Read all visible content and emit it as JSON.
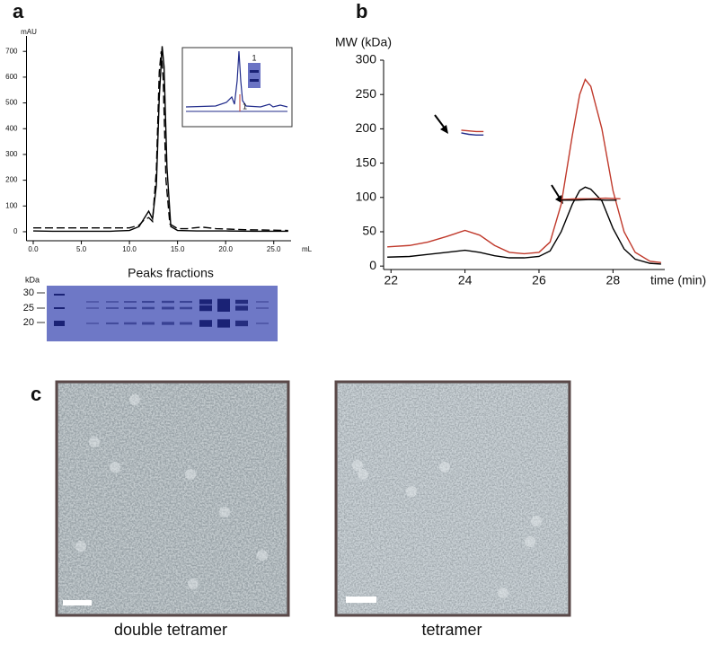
{
  "panels": [
    "a",
    "b",
    "c"
  ],
  "chart_data": [
    {
      "type": "line",
      "y_label": "mAU",
      "x_label": "mL",
      "xlim": [
        -0.7,
        26.8
      ],
      "ylim": [
        -35,
        760
      ],
      "xticks": [
        {
          "value": 0,
          "label": "0.0"
        },
        {
          "value": 5,
          "label": "5.0"
        },
        {
          "value": 10,
          "label": "10.0"
        },
        {
          "value": 15,
          "label": "15.0"
        },
        {
          "value": 20,
          "label": "20.0"
        },
        {
          "value": 25,
          "label": "25.0"
        }
      ],
      "yticks": [
        0,
        100,
        200,
        300,
        400,
        500,
        600,
        700
      ],
      "series": [
        {
          "color": "#000000",
          "style": "solid",
          "x": [
            0,
            2,
            4,
            6,
            8,
            10,
            11,
            11.5,
            12,
            12.4,
            12.8,
            13.1,
            13.4,
            13.6,
            13.9,
            14.3,
            15,
            17,
            20,
            23,
            26.5
          ],
          "values": [
            3,
            2,
            2,
            2,
            2,
            5,
            20,
            50,
            80,
            50,
            180,
            520,
            720,
            640,
            250,
            20,
            5,
            3,
            3,
            2,
            2
          ]
        },
        {
          "color": "#000000",
          "style": "dashed",
          "x": [
            0,
            2,
            4,
            6,
            8,
            10,
            11,
            11.5,
            12,
            12.4,
            12.8,
            13.1,
            13.3,
            13.5,
            13.8,
            14.2,
            15,
            16,
            17.5,
            19,
            22,
            26.5
          ],
          "values": [
            15,
            15,
            15,
            15,
            15,
            15,
            25,
            45,
            55,
            40,
            240,
            620,
            700,
            600,
            200,
            30,
            12,
            12,
            18,
            12,
            8,
            5
          ]
        }
      ],
      "inset_labels": [
        "1",
        "1"
      ]
    },
    {
      "type": "line",
      "y_label": "MW (kDa)",
      "x_label": "time (min)",
      "xlim": [
        21.8,
        29.4
      ],
      "ylim": [
        -5,
        300
      ],
      "xticks": [
        22,
        24,
        26,
        28
      ],
      "yticks": [
        0,
        50,
        100,
        150,
        200,
        250,
        300
      ],
      "series": [
        {
          "color": "#c0392b",
          "style": "solid",
          "x": [
            21.9,
            22.5,
            23,
            23.5,
            24,
            24.4,
            24.8,
            25.2,
            25.6,
            26,
            26.3,
            26.6,
            26.9,
            27.1,
            27.25,
            27.4,
            27.7,
            28,
            28.3,
            28.6,
            29,
            29.3
          ],
          "values": [
            28,
            30,
            35,
            43,
            52,
            45,
            30,
            20,
            18,
            20,
            35,
            90,
            190,
            250,
            272,
            262,
            200,
            110,
            50,
            20,
            7,
            5
          ]
        },
        {
          "color": "#000000",
          "style": "solid",
          "x": [
            21.9,
            22.5,
            23,
            23.5,
            24,
            24.4,
            24.8,
            25.2,
            25.6,
            26,
            26.3,
            26.6,
            26.9,
            27.1,
            27.25,
            27.4,
            27.7,
            28,
            28.3,
            28.6,
            29,
            29.3
          ],
          "values": [
            13,
            14,
            17,
            20,
            23,
            20,
            15,
            12,
            12,
            14,
            22,
            50,
            90,
            110,
            115,
            112,
            95,
            55,
            25,
            10,
            4,
            3
          ]
        },
        {
          "color": "#c0392b",
          "style": "solid",
          "x": [
            23.9,
            24.1,
            24.3,
            24.5
          ],
          "values": [
            198,
            197,
            196,
            196
          ]
        },
        {
          "color": "#1f2a8a",
          "style": "solid",
          "x": [
            23.9,
            24.1,
            24.3,
            24.5
          ],
          "values": [
            194,
            192,
            191,
            191
          ]
        },
        {
          "color": "#c0392b",
          "style": "solid",
          "x": [
            26.6,
            27,
            27.4,
            27.8,
            28.2
          ],
          "values": [
            97,
            98,
            98,
            99,
            98
          ]
        },
        {
          "color": "#000000",
          "style": "solid",
          "x": [
            26.6,
            27,
            27.4,
            27.8,
            28.1
          ],
          "values": [
            96,
            96,
            97,
            96,
            96
          ]
        }
      ]
    }
  ],
  "gel": {
    "title": "Peaks fractions",
    "unit": "kDa",
    "markers": [
      "30",
      "25",
      "20"
    ]
  },
  "micrographs": [
    {
      "caption": "double tetramer"
    },
    {
      "caption": "tetramer"
    }
  ]
}
